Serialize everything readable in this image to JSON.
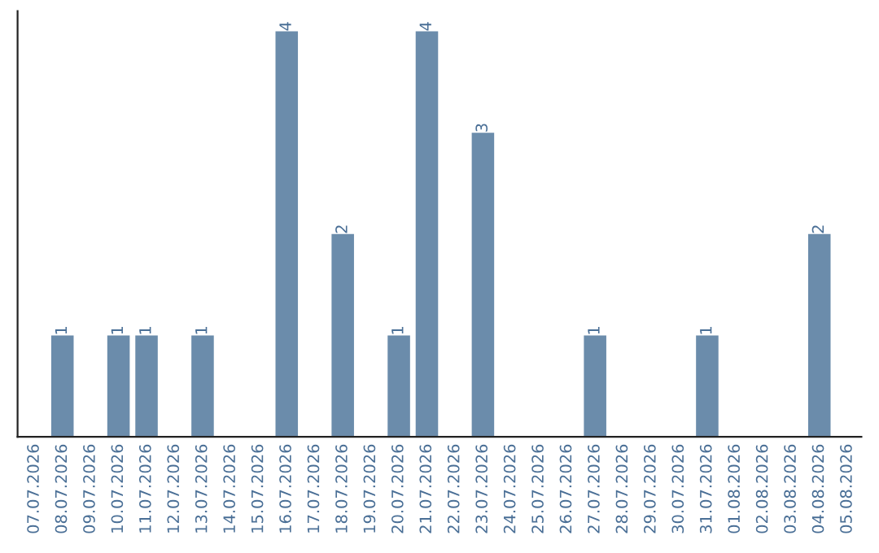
{
  "chart_data": {
    "type": "bar",
    "categories": [
      "07.07.2026",
      "08.07.2026",
      "09.07.2026",
      "10.07.2026",
      "11.07.2026",
      "12.07.2026",
      "13.07.2026",
      "14.07.2026",
      "15.07.2026",
      "16.07.2026",
      "17.07.2026",
      "18.07.2026",
      "19.07.2026",
      "20.07.2026",
      "21.07.2026",
      "22.07.2026",
      "23.07.2026",
      "24.07.2026",
      "25.07.2026",
      "26.07.2026",
      "27.07.2026",
      "28.07.2026",
      "29.07.2026",
      "30.07.2026",
      "31.07.2026",
      "01.08.2026",
      "02.08.2026",
      "03.08.2026",
      "04.08.2026",
      "05.08.2026"
    ],
    "values": [
      0,
      1,
      0,
      1,
      1,
      0,
      1,
      0,
      0,
      4,
      0,
      2,
      0,
      1,
      4,
      0,
      3,
      0,
      0,
      0,
      1,
      0,
      0,
      0,
      1,
      0,
      0,
      0,
      2,
      0
    ],
    "value_labels": [
      null,
      "1",
      null,
      "1",
      "1",
      null,
      "1",
      null,
      null,
      "4",
      null,
      "2",
      null,
      "1",
      "4",
      null,
      "3",
      null,
      null,
      null,
      "1",
      null,
      null,
      null,
      "1",
      null,
      null,
      null,
      "2",
      null
    ],
    "color": "#6b8cab",
    "ylim": [
      0,
      4.2
    ],
    "tick_labels": "x",
    "grid": false,
    "legend": false
  }
}
